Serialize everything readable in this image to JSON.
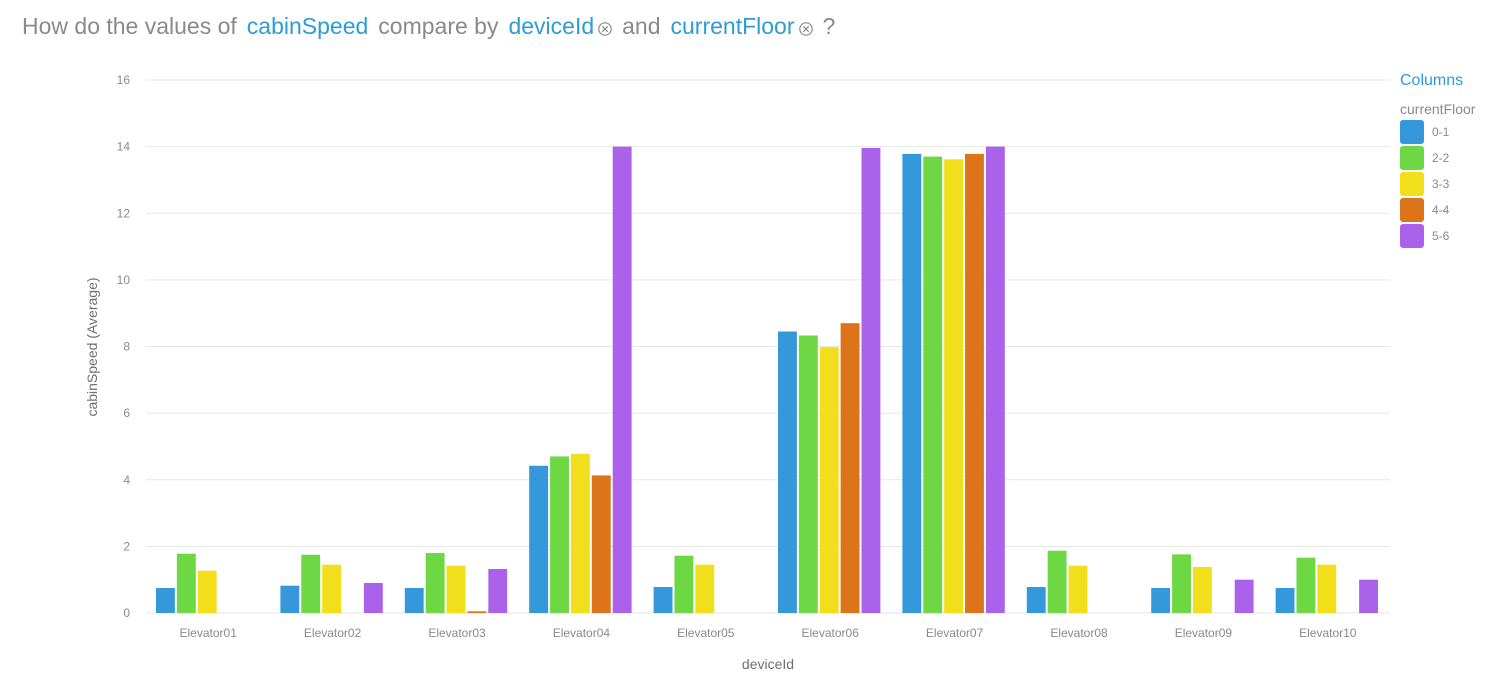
{
  "question": {
    "prefix": "How do the values of",
    "measure": "cabinSpeed",
    "middle": "compare by",
    "dimension1": "deviceId",
    "conjunction": "and",
    "dimension2": "currentFloor",
    "suffix": "?",
    "remove_icon": "circle-x-icon"
  },
  "legend": {
    "title": "Columns",
    "subtitle": "currentFloor"
  },
  "colors": {
    "accent": "#2e9bd6",
    "grid": "#e6e6e6",
    "axis_text": "#8a8a8a"
  },
  "chart_data": {
    "type": "bar",
    "xlabel": "deviceId",
    "ylabel": "cabinSpeed (Average)",
    "ylim": [
      0,
      16
    ],
    "yticks": [
      0,
      2,
      4,
      6,
      8,
      10,
      12,
      14,
      16
    ],
    "grid": true,
    "legend_position": "top-right",
    "categories": [
      "Elevator01",
      "Elevator02",
      "Elevator03",
      "Elevator04",
      "Elevator05",
      "Elevator06",
      "Elevator07",
      "Elevator08",
      "Elevator09",
      "Elevator10"
    ],
    "series": [
      {
        "name": "0-1",
        "color": "#3498db",
        "values": [
          0.75,
          0.82,
          0.75,
          4.42,
          0.78,
          8.45,
          13.78,
          0.78,
          0.75,
          0.75
        ]
      },
      {
        "name": "2-2",
        "color": "#6dd844",
        "values": [
          1.78,
          1.75,
          1.8,
          4.7,
          1.72,
          8.33,
          13.7,
          1.87,
          1.76,
          1.66
        ]
      },
      {
        "name": "3-3",
        "color": "#f2df1c",
        "values": [
          1.27,
          1.45,
          1.42,
          4.78,
          1.45,
          7.98,
          13.62,
          1.42,
          1.38,
          1.45
        ]
      },
      {
        "name": "4-4",
        "color": "#dd7419",
        "values": [
          null,
          null,
          0.05,
          4.13,
          null,
          8.7,
          13.78,
          null,
          null,
          null
        ]
      },
      {
        "name": "5-6",
        "color": "#aa62ea",
        "values": [
          null,
          0.9,
          1.32,
          14.0,
          null,
          13.96,
          14.0,
          null,
          1.0,
          1.0
        ]
      }
    ]
  }
}
